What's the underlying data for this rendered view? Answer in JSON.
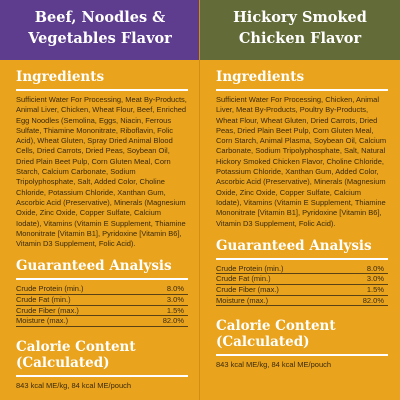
{
  "columns": [
    {
      "header_lines": [
        "Beef, Noodles &",
        "Vegetables Flavor"
      ],
      "ingredients_title": "Ingredients",
      "ingredients_text": "Sufficient Water For Processing, Meat By-Products, Animal Liver, Chicken, Wheat Flour, Beef, Enriched Egg Noodles (Semolina, Eggs, Niacin, Ferrous Sulfate, Thiamine Mononitrate, Riboflavin, Folic Acid), Wheat Gluten, Spray Dried Animal Blood Cells, Dried Carrots, Dried Peas, Soybean Oil, Dried Plain Beet Pulp, Corn Gluten Meal, Corn Starch, Calcium Carbonate, Sodium Tripolyphosphate, Salt, Added Color, Choline Chloride, Potassium Chloride, Xanthan Gum, Ascorbic Acid (Preservative), Minerals (Magnesium Oxide, Zinc Oxide, Copper Sulfate, Calcium Iodate), Vitamins (Vitamin E Supplement, Thiamine Mononitrate [Vitamin B1], Pyridoxine [Vitamin B6], Vitamin D3 Supplement, Folic Acid).",
      "analysis_title": "Guaranteed Analysis",
      "analysis": [
        {
          "label": "Crude Protein (min.)",
          "value": "8.0%"
        },
        {
          "label": "Crude Fat (min.)",
          "value": "3.0%"
        },
        {
          "label": "Crude Fiber (max.)",
          "value": "1.5%"
        },
        {
          "label": "Moisture (max.)",
          "value": "82.0%"
        }
      ],
      "calorie_title_lines": [
        "Calorie Content",
        "(Calculated)"
      ],
      "calorie_text": "843 kcal ME/kg, 84 kcal ME/pouch"
    },
    {
      "header_lines": [
        "Hickory Smoked",
        "Chicken Flavor"
      ],
      "ingredients_title": "Ingredients",
      "ingredients_text": "Sufficient Water For Processing, Chicken, Animal Liver, Meat By-Products, Poultry By-Products, Wheat Flour, Wheat Gluten, Dried Carrots, Dried Peas, Dried Plain Beet Pulp, Corn Gluten Meal, Corn Starch, Animal Plasma, Soybean Oil, Calcium Carbonate, Sodium Tripolyphosphate, Salt, Natural Hickory Smoked Chicken Flavor, Choline Chloride, Potassium Chloride, Xanthan Gum, Added Color, Ascorbic Acid (Preservative), Minerals (Magnesium Oxide, Zinc Oxide, Copper Sulfate, Calcium Iodate), Vitamins (Vitamin E Supplement, Thiamine Mononitrate [Vitamin B1], Pyridoxine [Vitamin B6], Vitamin D3 Supplement, Folic Acid).",
      "analysis_title": "Guaranteed Analysis",
      "analysis": [
        {
          "label": "Crude Protein (min.)",
          "value": "8.0%"
        },
        {
          "label": "Crude Fat (min.)",
          "value": "3.0%"
        },
        {
          "label": "Crude Fiber (max.)",
          "value": "1.5%"
        },
        {
          "label": "Moisture (max.)",
          "value": "82.0%"
        }
      ],
      "calorie_title_lines": [
        "Calorie Content",
        "(Calculated)"
      ],
      "calorie_text": "843 kcal ME/kg, 84 kcal ME/pouch"
    }
  ],
  "colors": {
    "background": "#e9a31d",
    "left_header": "#5e3d8f",
    "right_header": "#636c38",
    "heading_text": "#ffffff",
    "body_text": "#3a2a0e"
  }
}
